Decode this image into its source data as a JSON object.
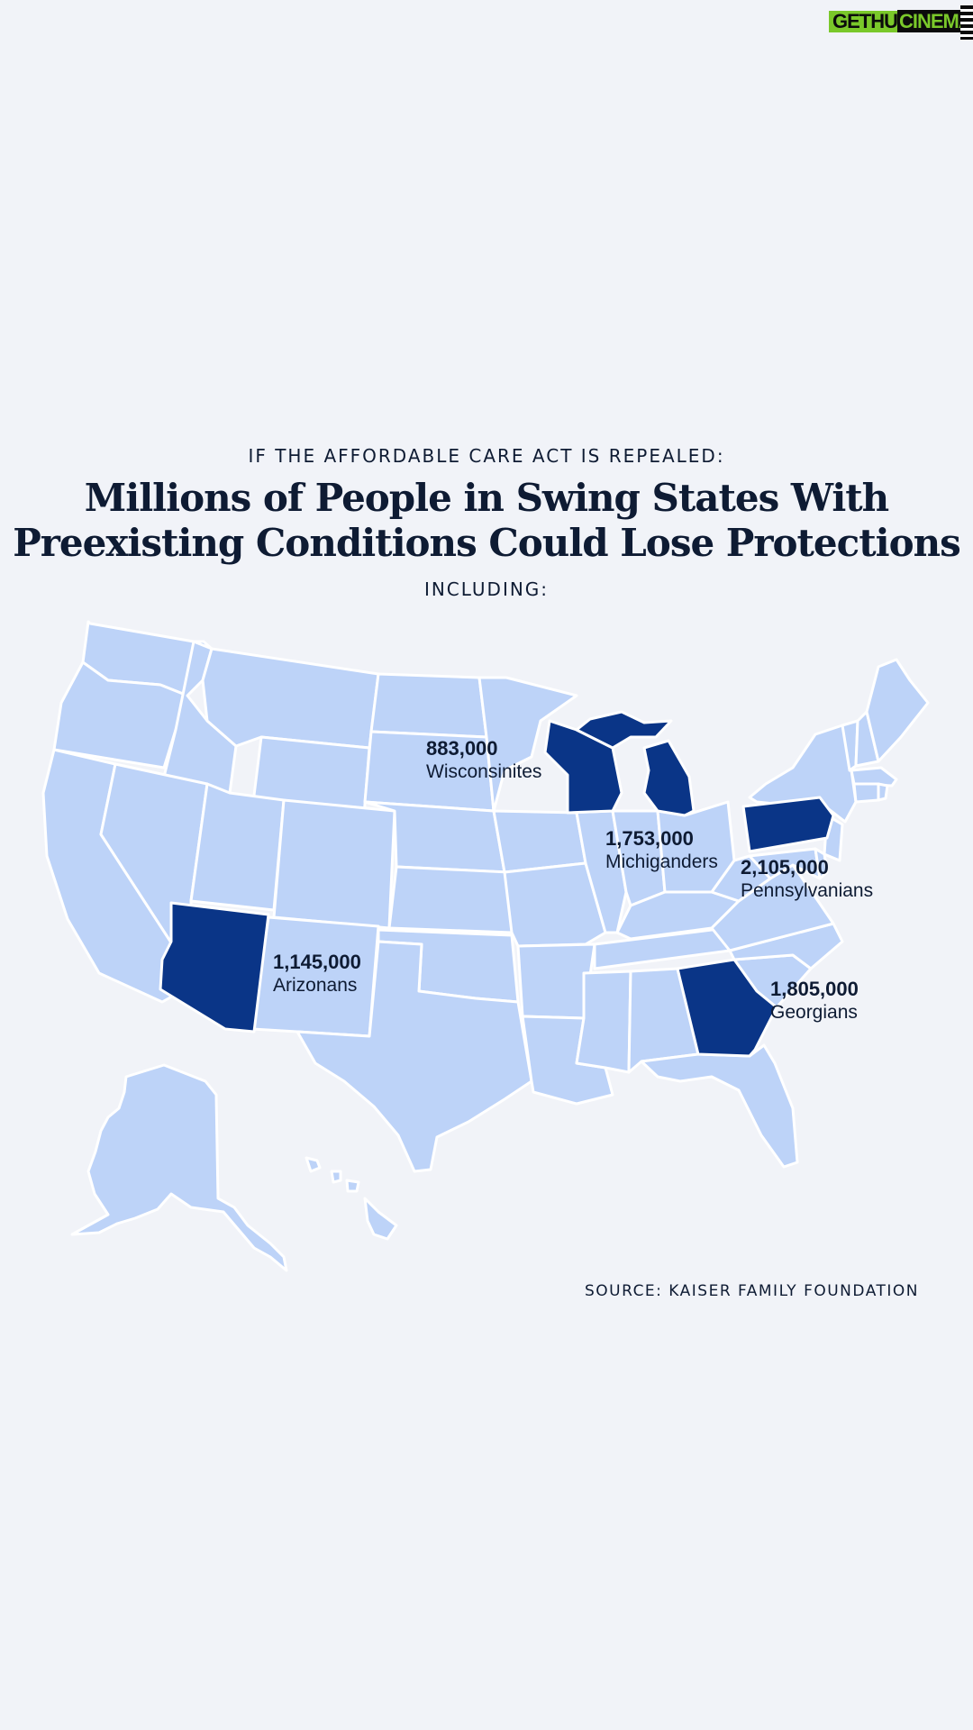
{
  "logo": {
    "part1": "GETHU",
    "part2": "CINEMA"
  },
  "header": {
    "kicker": "IF THE AFFORDABLE CARE ACT IS REPEALED:",
    "title_line1": "Millions of People in Swing States With",
    "title_line2": "Preexisting Conditions Could Lose Protections",
    "subkicker": "INCLUDING:"
  },
  "map": {
    "colors": {
      "base_state": "#bdd3f8",
      "highlight_state": "#0a3587",
      "border": "#ffffff",
      "background": "#f1f3f8"
    },
    "states": [
      {
        "name": "Wisconsin",
        "count": "883,000",
        "demonym": "Wisconsinites"
      },
      {
        "name": "Michigan",
        "count": "1,753,000",
        "demonym": "Michiganders"
      },
      {
        "name": "Pennsylvania",
        "count": "2,105,000",
        "demonym": "Pennsylvanians"
      },
      {
        "name": "Arizona",
        "count": "1,145,000",
        "demonym": "Arizonans"
      },
      {
        "name": "Georgia",
        "count": "1,805,000",
        "demonym": "Georgians"
      }
    ]
  },
  "source": "SOURCE: KAISER FAMILY FOUNDATION"
}
